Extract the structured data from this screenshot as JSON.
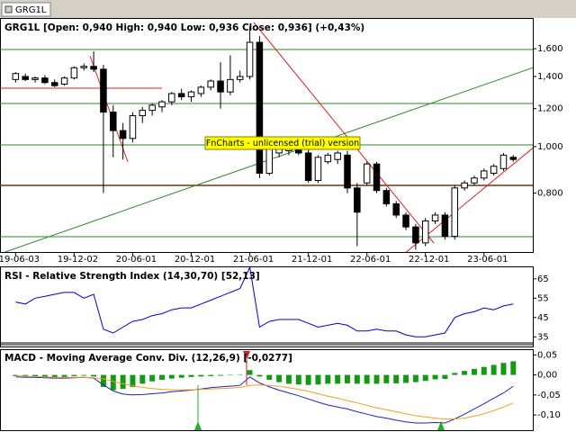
{
  "header": {
    "tab": "GRG1L"
  },
  "chart_data": [
    {
      "type": "candlestick",
      "title": "GRG1L [Open: 0,940  High: 0,940  Low: 0,936  Close: 0,936]  (+0,43%)",
      "annotation": "FnCharts - unlicensed (trial) version",
      "log_scale": true,
      "up_color": "#ffffff",
      "down_color": "#000000",
      "xlim": [
        -1.6,
        53
      ],
      "xticks": [
        {
          "value": 0,
          "label": "19-06-03"
        },
        {
          "value": 6,
          "label": "19-12-02"
        },
        {
          "value": 12,
          "label": "20-06-01"
        },
        {
          "value": 18,
          "label": "20-12-01"
        },
        {
          "value": 24,
          "label": "21-06-01"
        },
        {
          "value": 30,
          "label": "21-12-01"
        },
        {
          "value": 36,
          "label": "22-06-01"
        },
        {
          "value": 42,
          "label": "22-12-01"
        },
        {
          "value": 48,
          "label": "23-06-01"
        }
      ],
      "ylim": [
        0.603,
        1.846
      ],
      "yticks": [
        {
          "value": 1.6,
          "label": "1,600"
        },
        {
          "value": 1.4,
          "label": "1,400"
        },
        {
          "value": 1.2,
          "label": "1,200"
        },
        {
          "value": 1.0,
          "label": "1,000"
        },
        {
          "value": 0.8,
          "label": "0,800"
        }
      ],
      "open": [
        1.38,
        1.4,
        1.38,
        1.39,
        1.36,
        1.35,
        1.39,
        1.46,
        1.47,
        1.45,
        1.18,
        1.08,
        1.04,
        1.16,
        1.19,
        1.21,
        1.24,
        1.29,
        1.27,
        1.29,
        1.33,
        1.37,
        1.3,
        1.38,
        1.4,
        1.65,
        0.88,
        0.97,
        0.98,
        1.0,
        0.97,
        0.85,
        0.93,
        0.94,
        0.96,
        0.82,
        0.84,
        0.92,
        0.81,
        0.76,
        0.72,
        0.68,
        0.63,
        0.7,
        0.72,
        0.65,
        0.82,
        0.84,
        0.86,
        0.88,
        0.9,
        0.95
      ],
      "high": [
        1.43,
        1.42,
        1.4,
        1.41,
        1.38,
        1.4,
        1.47,
        1.49,
        1.58,
        1.48,
        1.22,
        1.12,
        1.18,
        1.21,
        1.23,
        1.25,
        1.3,
        1.32,
        1.31,
        1.34,
        1.38,
        1.5,
        1.55,
        1.44,
        1.78,
        1.7,
        1.0,
        1.02,
        1.01,
        1.02,
        0.99,
        0.96,
        0.97,
        0.98,
        0.98,
        0.84,
        0.93,
        0.93,
        0.82,
        0.77,
        0.73,
        0.69,
        0.71,
        0.73,
        0.73,
        0.83,
        0.85,
        0.87,
        0.9,
        0.92,
        0.97,
        0.96
      ],
      "low": [
        1.36,
        1.37,
        1.36,
        1.35,
        1.33,
        1.34,
        1.38,
        1.44,
        1.43,
        0.8,
        0.95,
        0.94,
        1.02,
        1.12,
        1.16,
        1.18,
        1.22,
        1.25,
        1.24,
        1.27,
        1.31,
        1.2,
        1.28,
        1.36,
        1.38,
        0.86,
        0.87,
        0.95,
        0.96,
        0.96,
        0.84,
        0.84,
        0.92,
        0.92,
        0.8,
        0.62,
        0.83,
        0.8,
        0.75,
        0.71,
        0.67,
        0.61,
        0.62,
        0.69,
        0.64,
        0.64,
        0.81,
        0.83,
        0.85,
        0.87,
        0.89,
        0.93
      ],
      "close": [
        1.42,
        1.38,
        1.39,
        1.36,
        1.34,
        1.39,
        1.46,
        1.47,
        1.45,
        1.18,
        1.08,
        1.04,
        1.16,
        1.19,
        1.22,
        1.24,
        1.29,
        1.27,
        1.3,
        1.33,
        1.37,
        1.3,
        1.38,
        1.4,
        1.65,
        0.88,
        0.99,
        1.0,
        1.0,
        0.97,
        0.85,
        0.95,
        0.96,
        0.97,
        0.82,
        0.73,
        0.92,
        0.81,
        0.76,
        0.72,
        0.68,
        0.63,
        0.7,
        0.72,
        0.65,
        0.82,
        0.84,
        0.86,
        0.89,
        0.91,
        0.96,
        0.94
      ]
    },
    {
      "type": "line",
      "title": "RSI - Relative Strength Index (14,30,70) [52,13]",
      "xlim": [
        -1.6,
        53
      ],
      "ylim": [
        30,
        71
      ],
      "yticks": [
        65,
        55,
        45,
        35
      ],
      "series": [
        {
          "color": "#0000cc",
          "values": [
            53,
            52,
            55,
            56,
            57,
            58,
            58,
            55,
            57,
            39,
            37,
            40,
            43,
            44,
            46,
            47,
            49,
            50,
            50,
            52,
            54,
            56,
            58,
            60,
            71,
            40,
            43,
            44,
            44,
            44,
            42,
            40,
            41,
            42,
            41,
            38,
            38,
            39,
            38,
            38,
            36,
            35,
            35,
            36,
            37,
            45,
            47,
            48,
            50,
            49,
            51,
            52
          ]
        }
      ]
    },
    {
      "type": "combo",
      "title": "MACD - Moving Average Conv. Div. (12,26,9) [-0,0277]",
      "xlim": [
        -1.6,
        53
      ],
      "ylim": [
        -0.138,
        0.062
      ],
      "yticks": [
        {
          "value": 0.05,
          "label": "0,05"
        },
        {
          "value": 0,
          "label": "0,00"
        },
        {
          "value": -0.05,
          "label": "-0,05"
        },
        {
          "value": -0.1,
          "label": "-0,10"
        }
      ],
      "series": [
        {
          "kind": "bar",
          "color": "#139a13",
          "values": [
            -0.003,
            -0.004,
            -0.004,
            -0.005,
            -0.006,
            -0.005,
            -0.003,
            -0.002,
            -0.004,
            -0.03,
            -0.038,
            -0.035,
            -0.03,
            -0.022,
            -0.016,
            -0.012,
            -0.009,
            -0.007,
            -0.005,
            -0.004,
            -0.003,
            -0.002,
            -0.001,
            0.001,
            0.012,
            -0.004,
            -0.012,
            -0.018,
            -0.022,
            -0.024,
            -0.025,
            -0.024,
            -0.022,
            -0.022,
            -0.021,
            -0.022,
            -0.022,
            -0.022,
            -0.021,
            -0.021,
            -0.02,
            -0.018,
            -0.015,
            -0.011,
            -0.01,
            0.005,
            0.01,
            0.015,
            0.02,
            0.025,
            0.03,
            0.034
          ]
        },
        {
          "kind": "line",
          "color": "#2020c0",
          "values": [
            -0.005,
            -0.006,
            -0.006,
            -0.007,
            -0.008,
            -0.008,
            -0.007,
            -0.006,
            -0.008,
            -0.025,
            -0.04,
            -0.048,
            -0.05,
            -0.049,
            -0.047,
            -0.045,
            -0.042,
            -0.04,
            -0.038,
            -0.035,
            -0.032,
            -0.03,
            -0.028,
            -0.026,
            -0.005,
            -0.02,
            -0.03,
            -0.038,
            -0.045,
            -0.052,
            -0.06,
            -0.068,
            -0.075,
            -0.08,
            -0.085,
            -0.092,
            -0.098,
            -0.104,
            -0.108,
            -0.113,
            -0.117,
            -0.12,
            -0.12,
            -0.119,
            -0.12,
            -0.11,
            -0.098,
            -0.085,
            -0.072,
            -0.058,
            -0.045,
            -0.028
          ]
        },
        {
          "kind": "line",
          "color": "#f0a020",
          "values": [
            -0.002,
            -0.003,
            -0.004,
            -0.005,
            -0.006,
            -0.006,
            -0.006,
            -0.006,
            -0.007,
            -0.01,
            -0.016,
            -0.022,
            -0.027,
            -0.031,
            -0.034,
            -0.036,
            -0.037,
            -0.037,
            -0.037,
            -0.036,
            -0.035,
            -0.034,
            -0.033,
            -0.031,
            -0.026,
            -0.025,
            -0.026,
            -0.028,
            -0.032,
            -0.036,
            -0.041,
            -0.047,
            -0.053,
            -0.058,
            -0.064,
            -0.07,
            -0.076,
            -0.082,
            -0.087,
            -0.092,
            -0.097,
            -0.102,
            -0.105,
            -0.108,
            -0.11,
            -0.11,
            -0.108,
            -0.103,
            -0.097,
            -0.089,
            -0.08,
            -0.07
          ]
        }
      ]
    }
  ]
}
